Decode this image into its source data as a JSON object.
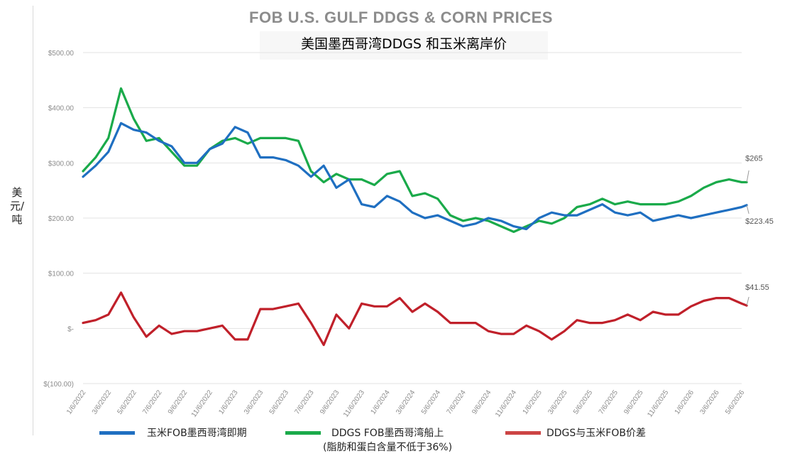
{
  "chart_data": {
    "type": "line",
    "title": "FOB U.S. GULF DDGS & CORN PRICES",
    "subtitle": "美国墨西哥湾DDGS 和玉米离岸价",
    "ylabel": "美元/吨",
    "ylim": [
      -100,
      500
    ],
    "yticks": [
      {
        "value": 500,
        "label": "$500.00"
      },
      {
        "value": 400,
        "label": "$400.00"
      },
      {
        "value": 300,
        "label": "$300.00"
      },
      {
        "value": 200,
        "label": "$200.00"
      },
      {
        "value": 100,
        "label": "$100.00"
      },
      {
        "value": 0,
        "label": "$-"
      },
      {
        "value": -100,
        "label": "$(100.00)"
      }
    ],
    "grid": true,
    "legend_position": "bottom",
    "x_labels": [
      "1/6/2022",
      "3/6/2022",
      "5/6/2022",
      "7/6/2022",
      "9/6/2022",
      "11/6/2022",
      "1/6/2023",
      "3/6/2023",
      "5/6/2023",
      "7/6/2023",
      "9/6/2023",
      "11/6/2023",
      "1/6/2024",
      "3/6/2024",
      "5/6/2024",
      "7/6/2024",
      "9/6/2024",
      "11/6/2024",
      "1/6/2025",
      "3/6/2025",
      "5/6/2025",
      "7/6/2025",
      "9/6/2025",
      "11/6/2025",
      "1/6/2026",
      "3/6/2026",
      "5/6/2026"
    ],
    "x": [
      0,
      0.5,
      1,
      1.5,
      2,
      2.5,
      3,
      3.5,
      4,
      4.5,
      5,
      5.5,
      6,
      6.5,
      7,
      7.5,
      8,
      8.5,
      9,
      9.5,
      10,
      10.5,
      11,
      11.5,
      12,
      12.5,
      13,
      13.5,
      14,
      14.5,
      15,
      15.5,
      16,
      16.5,
      17,
      17.5,
      18,
      18.5,
      19,
      19.5,
      20,
      20.5,
      21,
      21.5,
      22,
      22.5,
      23,
      23.5,
      24,
      24.5,
      25,
      25.5,
      26,
      26.2
    ],
    "series": [
      {
        "name": "玉米FOB墨西哥湾即期",
        "color": "#1f6fc1",
        "values": [
          275,
          295,
          320,
          372,
          360,
          355,
          340,
          330,
          300,
          300,
          325,
          335,
          365,
          355,
          310,
          310,
          305,
          295,
          275,
          295,
          255,
          270,
          225,
          220,
          240,
          230,
          210,
          200,
          205,
          195,
          185,
          190,
          200,
          195,
          185,
          180,
          200,
          210,
          205,
          205,
          215,
          225,
          210,
          205,
          210,
          195,
          200,
          205,
          200,
          205,
          210,
          215,
          220,
          223.45
        ]
      },
      {
        "name": "DDGS FOB墨西哥湾船上\n(脂肪和蛋白含量不低于36%)",
        "color": "#1aaa4a",
        "values": [
          285,
          310,
          345,
          435,
          380,
          340,
          345,
          320,
          295,
          295,
          325,
          340,
          345,
          335,
          345,
          345,
          345,
          340,
          285,
          265,
          280,
          270,
          270,
          260,
          280,
          285,
          240,
          245,
          235,
          205,
          195,
          200,
          195,
          185,
          175,
          185,
          195,
          190,
          200,
          220,
          225,
          235,
          225,
          230,
          225,
          225,
          225,
          230,
          240,
          255,
          265,
          270,
          265,
          265
        ]
      },
      {
        "name": "DDGS与玉米FOB价差",
        "color": "#c0202a",
        "values": [
          10,
          15,
          25,
          65,
          20,
          -15,
          5,
          -10,
          -5,
          -5,
          0,
          5,
          -20,
          -20,
          35,
          35,
          40,
          45,
          10,
          -30,
          25,
          0,
          45,
          40,
          40,
          55,
          30,
          45,
          30,
          10,
          10,
          10,
          -5,
          -10,
          -10,
          5,
          -5,
          -20,
          -5,
          15,
          10,
          10,
          15,
          25,
          15,
          30,
          25,
          25,
          40,
          50,
          55,
          55,
          45,
          41.55
        ]
      }
    ],
    "end_labels": {
      "ddgs": "$265",
      "corn": "$223.45",
      "spread": "$41.55"
    }
  },
  "legend": [
    {
      "label": "玉米FOB墨西哥湾即期",
      "color": "#1f6fc1"
    },
    {
      "label": "DDGS FOB墨西哥湾船上",
      "sub": "(脂肪和蛋白含量不低于36%)",
      "color": "#1aaa4a"
    },
    {
      "label": "DDGS与玉米FOB价差",
      "color": "#c0202a"
    }
  ]
}
